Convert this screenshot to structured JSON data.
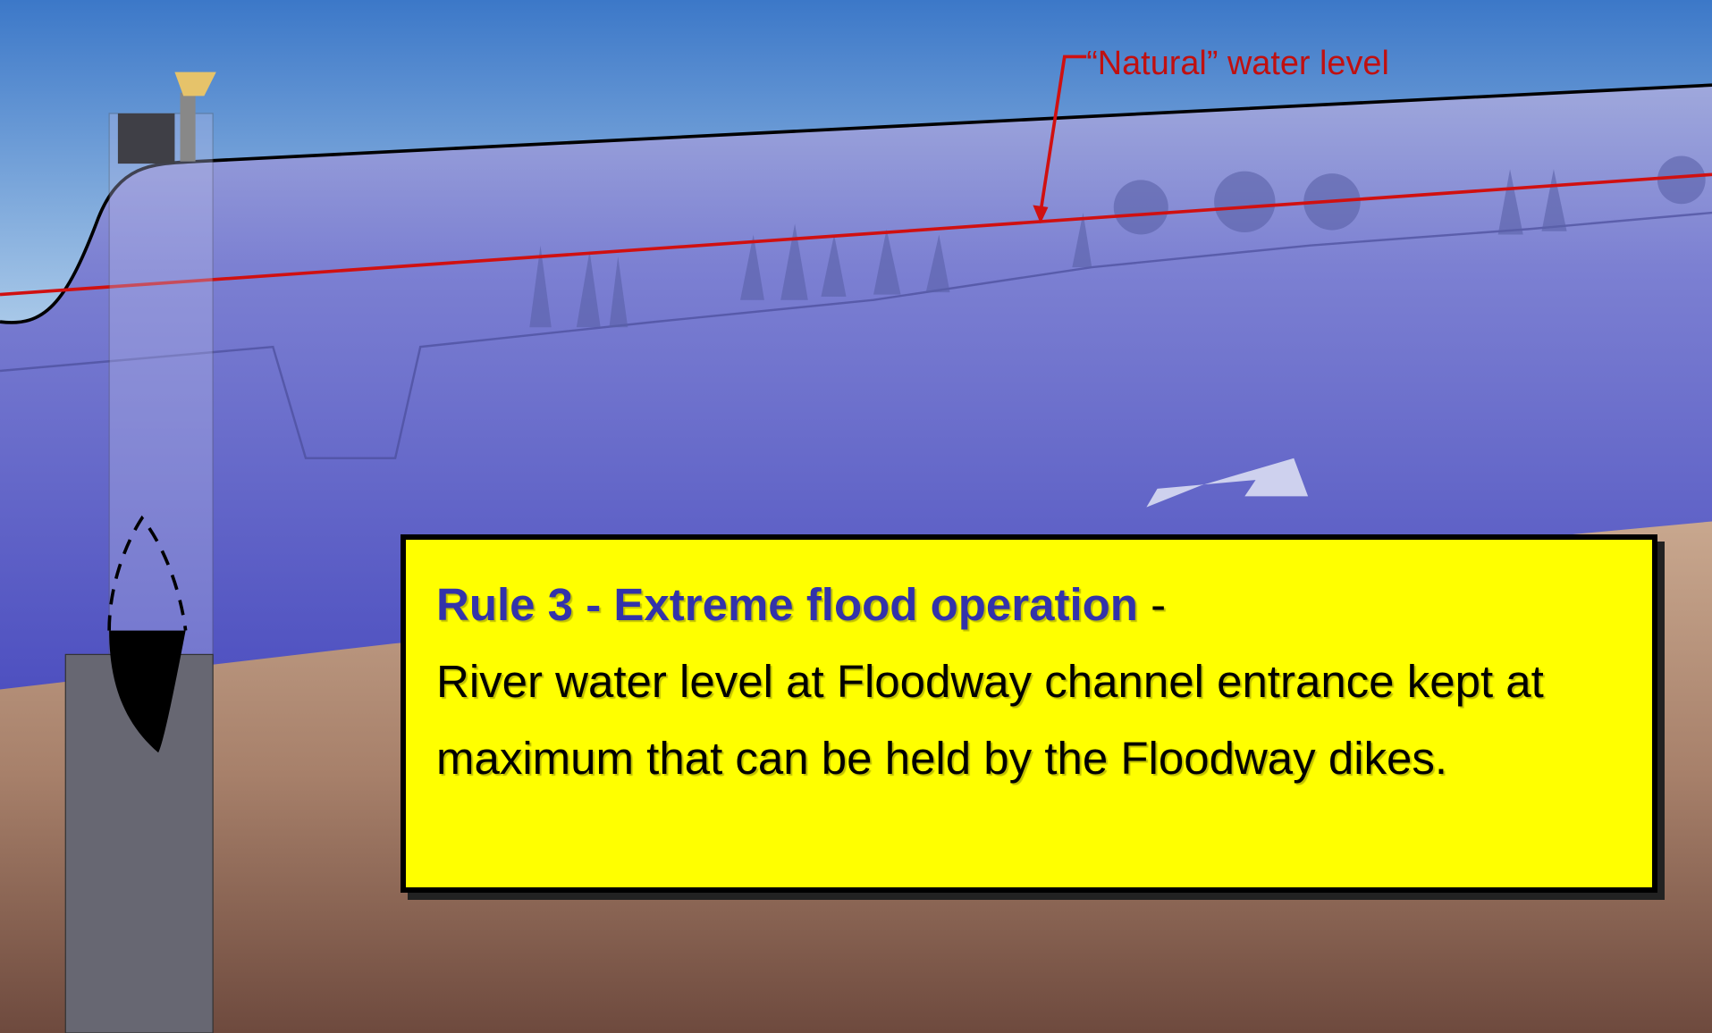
{
  "diagram": {
    "water_level_label": "“Natural” water level"
  },
  "callout": {
    "title": "Rule 3 - Extreme flood operation",
    "separator": "-",
    "body": "River water level at Floodway channel entrance kept at maximum that can be held by the Floodway dikes."
  }
}
